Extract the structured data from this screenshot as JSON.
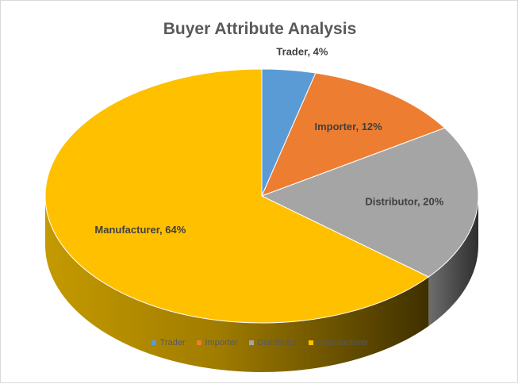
{
  "chart_data": {
    "type": "pie",
    "title": "Buyer Attribute Analysis",
    "categories": [
      "Trader",
      "Importer",
      "Distributor",
      "Manufacturer"
    ],
    "values": [
      4,
      12,
      20,
      64
    ],
    "data_labels": [
      "Trader, 4%",
      "Importer, 12%",
      "Distributor, 20%",
      "Manufacturer, 64%"
    ],
    "colors": [
      "#5b9bd5",
      "#ed7d31",
      "#a5a5a5",
      "#ffc000"
    ],
    "legend": "bottom",
    "style": "3d"
  }
}
